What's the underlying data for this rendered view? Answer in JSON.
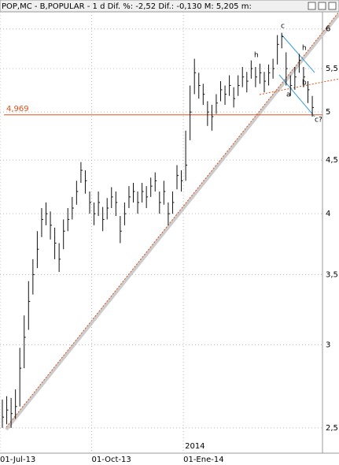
{
  "chart_data": {
    "type": "ohlc",
    "title": "POP,MC - B,POPULAR -  1 d Dif. %: -2,52 Dif.: -0,130 M: 5,205 m:",
    "categories": [
      "01-Jul-13",
      null,
      null,
      null,
      null,
      null,
      null,
      null,
      null,
      null,
      null,
      null,
      null,
      null,
      null,
      null,
      null,
      null,
      null,
      null,
      null,
      "01-Oct-13",
      null,
      null,
      null,
      null,
      null,
      null,
      null,
      null,
      null,
      null,
      null,
      null,
      null,
      null,
      null,
      null,
      null,
      null,
      null,
      null,
      "01-Ene-14",
      null,
      null,
      null,
      null,
      null,
      null,
      null,
      null,
      null,
      null,
      null,
      null,
      null,
      null,
      null,
      null,
      null,
      null,
      null,
      null,
      null,
      null,
      null,
      null,
      null,
      null,
      null,
      null,
      null
    ],
    "year_label": "2014",
    "close": [
      2.56,
      2.6,
      2.58,
      2.62,
      2.85,
      3.05,
      3.3,
      3.5,
      3.7,
      3.95,
      4.0,
      3.9,
      3.75,
      3.62,
      3.85,
      3.95,
      4.05,
      4.2,
      4.4,
      4.3,
      4.1,
      4.0,
      4.1,
      3.95,
      4.05,
      4.15,
      4.1,
      3.85,
      4.0,
      4.15,
      4.2,
      4.1,
      4.2,
      4.15,
      4.25,
      4.3,
      4.1,
      4.2,
      4.0,
      4.1,
      4.35,
      4.3,
      4.45,
      5.0,
      5.45,
      5.3,
      5.2,
      5.0,
      4.95,
      5.1,
      5.25,
      5.2,
      5.3,
      5.15,
      5.3,
      5.4,
      5.35,
      5.5,
      5.4,
      5.45,
      5.35,
      5.45,
      5.5,
      5.8,
      5.9,
      5.5,
      5.3,
      5.4,
      5.6,
      5.4,
      5.25,
      5.05
    ],
    "high": [
      2.66,
      2.68,
      2.67,
      2.72,
      2.98,
      3.2,
      3.45,
      3.62,
      3.85,
      4.05,
      4.1,
      4.02,
      3.88,
      3.75,
      3.95,
      4.05,
      4.15,
      4.3,
      4.48,
      4.4,
      4.2,
      4.1,
      4.2,
      4.06,
      4.14,
      4.24,
      4.2,
      3.98,
      4.1,
      4.25,
      4.28,
      4.2,
      4.28,
      4.25,
      4.33,
      4.38,
      4.2,
      4.3,
      4.1,
      4.2,
      4.45,
      4.4,
      4.8,
      5.3,
      5.62,
      5.45,
      5.32,
      5.12,
      5.08,
      5.2,
      5.35,
      5.3,
      5.42,
      5.28,
      5.42,
      5.52,
      5.46,
      5.6,
      5.52,
      5.56,
      5.46,
      5.55,
      5.62,
      5.92,
      5.95,
      5.7,
      5.42,
      5.52,
      5.68,
      5.52,
      5.35,
      5.18
    ],
    "low": [
      2.5,
      2.52,
      2.5,
      2.55,
      2.62,
      2.85,
      3.1,
      3.35,
      3.55,
      3.8,
      3.9,
      3.78,
      3.62,
      3.52,
      3.7,
      3.85,
      3.95,
      4.08,
      4.28,
      4.18,
      4.0,
      3.9,
      3.98,
      3.85,
      3.95,
      4.05,
      3.98,
      3.75,
      3.9,
      4.05,
      4.1,
      4.0,
      4.1,
      4.05,
      4.15,
      4.2,
      4.0,
      4.08,
      3.9,
      4.0,
      4.22,
      4.2,
      4.3,
      4.7,
      5.2,
      5.15,
      5.08,
      4.85,
      4.8,
      4.98,
      5.12,
      5.08,
      5.18,
      5.05,
      5.18,
      5.28,
      5.22,
      5.38,
      5.28,
      5.32,
      5.22,
      5.3,
      5.38,
      5.55,
      5.75,
      5.3,
      5.18,
      5.25,
      5.45,
      5.28,
      5.1,
      4.95
    ],
    "color": "#111111",
    "log_scale": true,
    "grid": true,
    "ylim": [
      2.365,
      6.23
    ],
    "yticks": [
      {
        "value": 2.5,
        "label": "2,5"
      },
      3,
      {
        "value": 3.5,
        "label": "3,5"
      },
      4,
      {
        "value": 4.5,
        "label": "4,5"
      },
      5,
      {
        "value": 5.5,
        "label": "5,5"
      },
      6
    ],
    "hline": {
      "value": 4.969,
      "label": "4,969",
      "color": "#e0501e"
    },
    "annotations": [
      "c",
      "h",
      "h",
      "b",
      "a",
      "c?"
    ]
  }
}
